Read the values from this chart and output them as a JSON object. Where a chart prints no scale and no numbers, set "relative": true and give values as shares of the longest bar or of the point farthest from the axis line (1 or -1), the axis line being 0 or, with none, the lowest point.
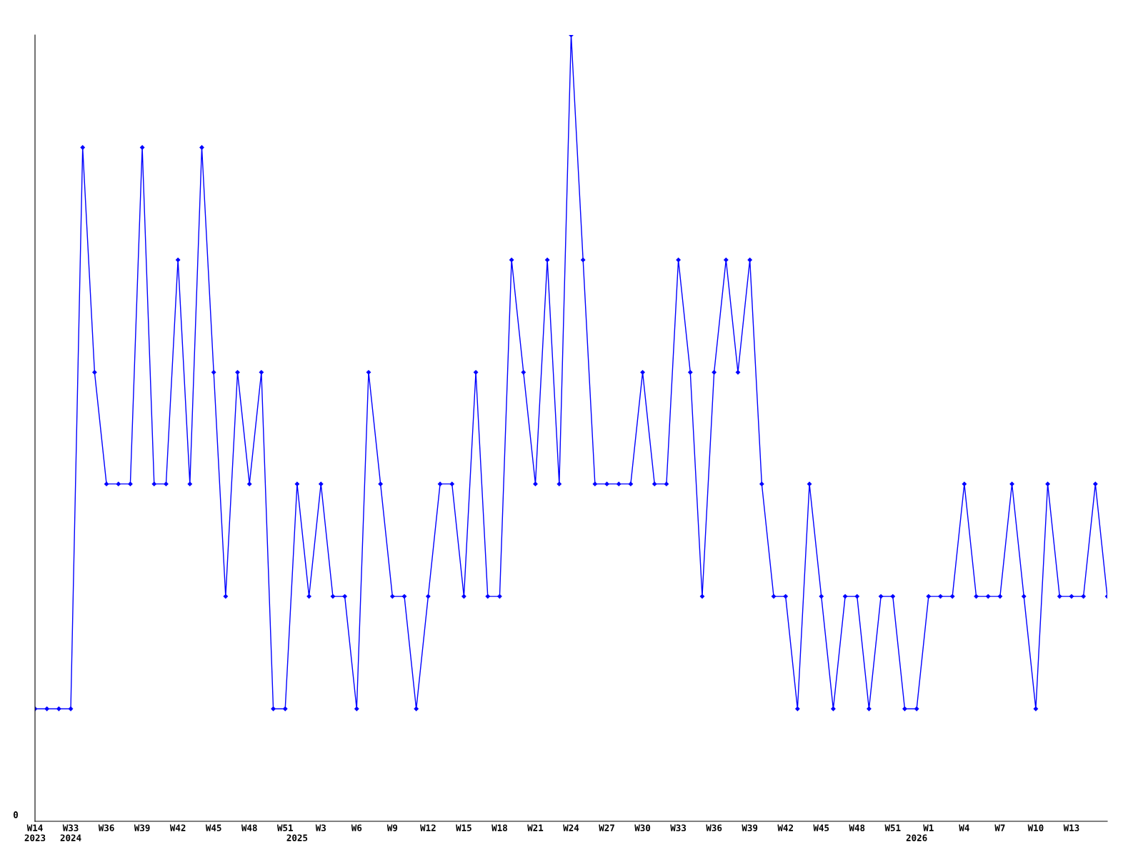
{
  "chart_data": {
    "type": "line",
    "relative": true,
    "annotations": [
      "0"
    ],
    "marker": "diamond",
    "line_style": "solid",
    "categories": [
      "W14\n2023",
      null,
      null,
      "W33\n2024",
      null,
      null,
      "W36",
      null,
      null,
      "W39",
      null,
      null,
      "W42",
      null,
      null,
      "W45",
      null,
      null,
      "W48",
      null,
      null,
      "W51",
      "\n2025",
      null,
      "W3",
      null,
      null,
      "W6",
      null,
      null,
      "W9",
      null,
      null,
      "W12",
      null,
      null,
      "W15",
      null,
      null,
      "W18",
      null,
      null,
      "W21",
      null,
      null,
      "W24",
      null,
      null,
      "W27",
      null,
      null,
      "W30",
      null,
      null,
      "W33",
      null,
      null,
      "W36",
      null,
      null,
      "W39",
      null,
      null,
      "W42",
      null,
      null,
      "W45",
      null,
      null,
      "W48",
      null,
      null,
      "W51",
      null,
      "\n2026",
      "W1",
      null,
      null,
      "W4",
      null,
      null,
      "W7",
      null,
      null,
      "W10",
      null,
      null,
      "W13",
      null,
      null,
      null
    ],
    "series": [
      {
        "color": "#0000ff",
        "values": [
          0.143,
          0.143,
          0.143,
          0.143,
          0.857,
          0.571,
          0.429,
          0.429,
          0.429,
          0.857,
          0.429,
          0.429,
          0.714,
          0.429,
          0.857,
          0.571,
          0.286,
          0.571,
          0.429,
          0.571,
          0.143,
          0.143,
          0.429,
          0.286,
          0.429,
          0.286,
          0.286,
          0.143,
          0.571,
          0.429,
          0.286,
          0.286,
          0.143,
          0.286,
          0.429,
          0.429,
          0.286,
          0.571,
          0.286,
          0.286,
          0.714,
          0.571,
          0.429,
          0.714,
          0.429,
          1,
          0.714,
          0.429,
          0.429,
          0.429,
          0.429,
          0.571,
          0.429,
          0.429,
          0.714,
          0.571,
          0.286,
          0.571,
          0.714,
          0.571,
          0.714,
          0.429,
          0.286,
          0.286,
          0.143,
          0.429,
          0.286,
          0.143,
          0.286,
          0.286,
          0.143,
          0.286,
          0.286,
          0.143,
          0.143,
          0.286,
          0.286,
          0.286,
          0.429,
          0.286,
          0.286,
          0.286,
          0.429,
          0.286,
          0.143,
          0.429,
          0.286,
          0.286,
          0.286,
          0.429,
          0.286
        ]
      }
    ]
  }
}
